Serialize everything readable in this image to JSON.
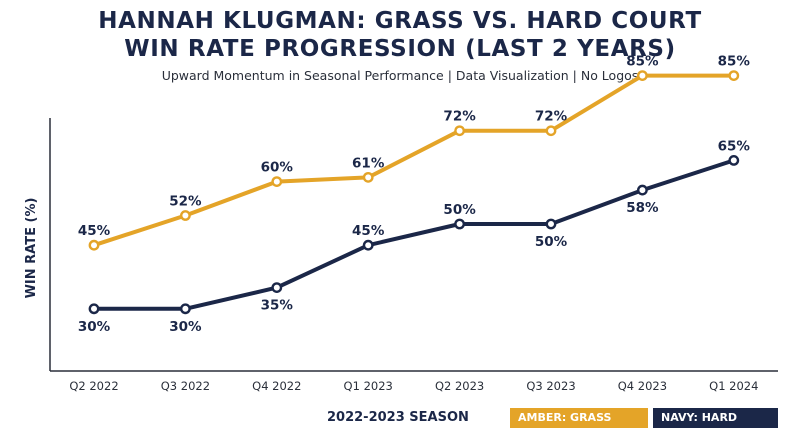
{
  "title_line1": "HANNAH KLUGMAN: GRASS VS. HARD COURT",
  "title_line2": "WIN RATE PROGRESSION (LAST 2 YEARS)",
  "subtitle": "Upward Momentum in Seasonal Performance | Data Visualization | No Logos",
  "chart_data": {
    "type": "line",
    "title": "HANNAH KLUGMAN: GRASS VS. HARD COURT WIN RATE PROGRESSION (LAST 2 YEARS)",
    "subtitle": "Upward Momentum in Seasonal Performance | Data Visualization | No Logos",
    "xlabel": "2022-2023 SEASON",
    "ylabel": "WIN RATE (%)",
    "categories": [
      "Q2 2022",
      "Q3 2022",
      "Q4 2022",
      "Q1 2023",
      "Q2 2023",
      "Q3 2023",
      "Q4 2023",
      "Q1 2024"
    ],
    "series": [
      {
        "name": "AMBER: GRASS COURTS",
        "color": "#e4a428",
        "values": [
          45,
          52,
          60,
          61,
          72,
          72,
          85,
          85
        ],
        "labels": [
          "45%",
          "52%",
          "60%",
          "61%",
          "72%",
          "72%",
          "85%",
          "85%"
        ]
      },
      {
        "name": "NAVY: HARD COURTS",
        "color": "#1b2748",
        "values": [
          30,
          30,
          35,
          45,
          50,
          50,
          58,
          65
        ],
        "labels": [
          "30%",
          "30%",
          "35%",
          "45%",
          "50%",
          "50%",
          "58%",
          "65%"
        ]
      }
    ],
    "grid": false,
    "legend_position": "bottom-right"
  }
}
